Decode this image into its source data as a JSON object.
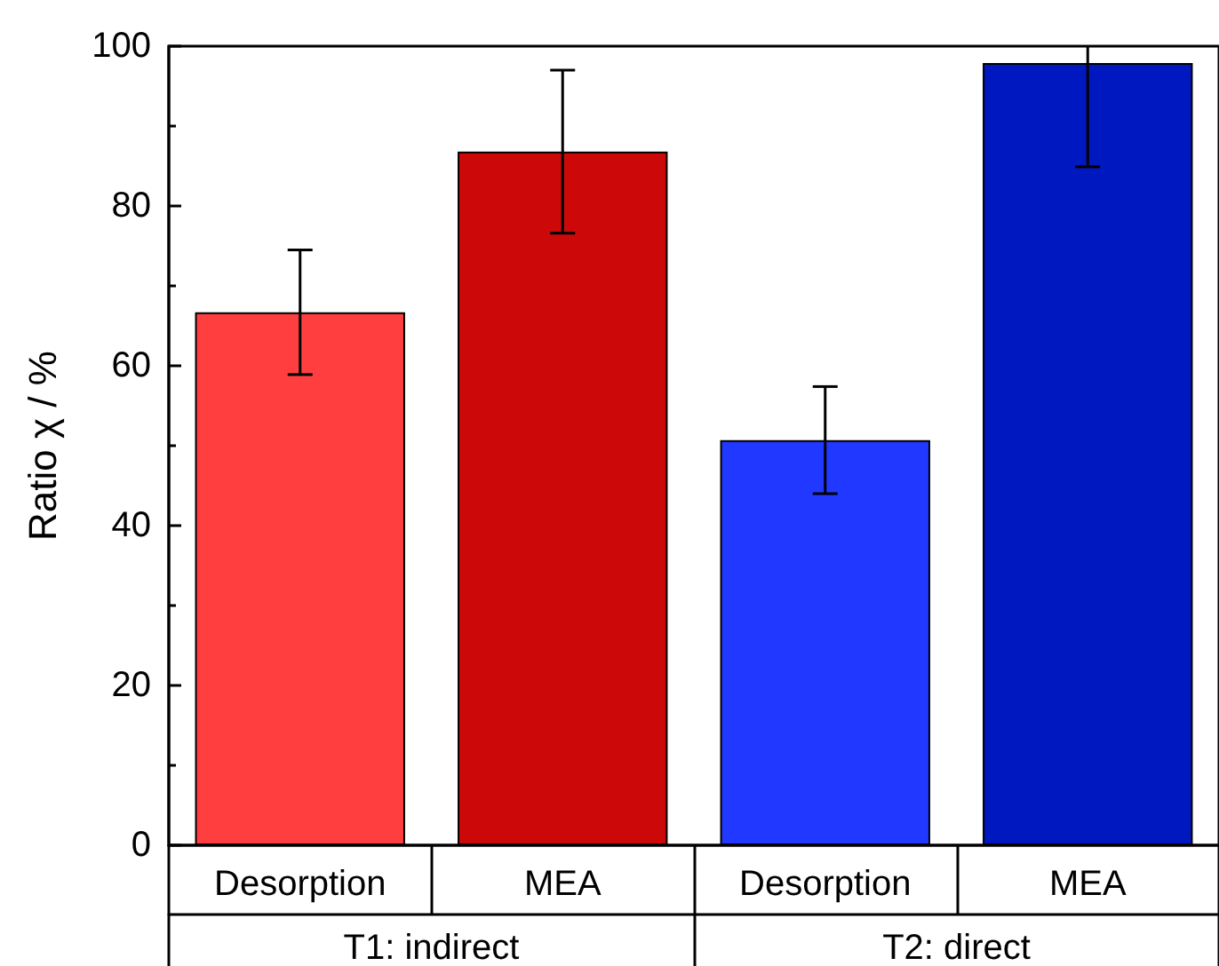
{
  "chart_data": {
    "type": "bar",
    "ylabel": "Ratio χ / %",
    "categories": [
      "Desorption",
      "MEA",
      "Desorption",
      "MEA"
    ],
    "values": [
      66.7,
      86.8,
      50.7,
      97.9
    ],
    "errors": [
      7.8,
      10.2,
      6.7,
      [
        84.9,
        100
      ]
    ],
    "colors": [
      "#ff3f3f",
      "#cc0808",
      "#2038ff",
      "#0018bf"
    ],
    "annotations": [
      "T1: indirect",
      "T2: direct"
    ],
    "ylim": [
      0,
      100
    ],
    "yticks": [
      0,
      20,
      40,
      60,
      80,
      100
    ]
  }
}
